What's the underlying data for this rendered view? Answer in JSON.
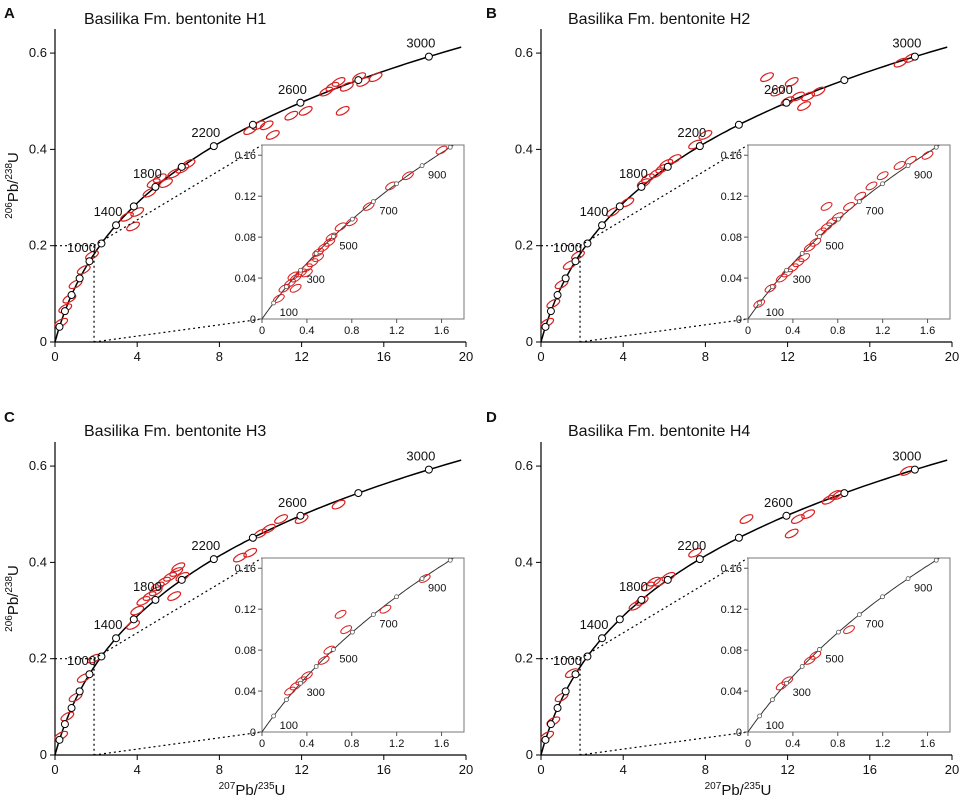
{
  "chart_data": [
    {
      "type": "scatter",
      "panel_label": "A",
      "title": "Basilika Fm. bentonite H1",
      "xlabel": "207Pb/235U",
      "ylabel": "206Pb/238U",
      "xlim": [
        0,
        20
      ],
      "ylim": [
        0,
        0.65
      ],
      "xticks": [
        "0",
        "4",
        "8",
        "12",
        "16",
        "20"
      ],
      "yticks": [
        "0",
        "0.2",
        "0.4",
        "0.6"
      ],
      "ages": [
        "1000",
        "1400",
        "1800",
        "2200",
        "2600",
        "3000"
      ],
      "inset": {
        "xlim": [
          0,
          1.8
        ],
        "ylim": [
          0,
          0.17
        ],
        "xticks": [
          "0",
          "0.4",
          "0.8",
          "1.2",
          "1.6"
        ],
        "yticks": [
          "0",
          "0.04",
          "0.08",
          "0.12",
          "0.16"
        ],
        "ages": [
          "100",
          "300",
          "500",
          "700",
          "900"
        ],
        "zoom_box": {
          "x": 1.9,
          "y": 0.2
        },
        "ellipses": [
          [
            0.15,
            0.02
          ],
          [
            0.25,
            0.035
          ],
          [
            0.3,
            0.04
          ],
          [
            0.35,
            0.045
          ],
          [
            0.4,
            0.05
          ],
          [
            0.45,
            0.055
          ],
          [
            0.5,
            0.06
          ],
          [
            0.55,
            0.07
          ],
          [
            0.6,
            0.075
          ],
          [
            0.3,
            0.03
          ],
          [
            0.2,
            0.03
          ],
          [
            0.4,
            0.045
          ],
          [
            0.28,
            0.042
          ],
          [
            0.5,
            0.065
          ],
          [
            0.62,
            0.08
          ],
          [
            0.7,
            0.09
          ],
          [
            0.8,
            0.095
          ],
          [
            0.95,
            0.11
          ],
          [
            1.15,
            0.13
          ],
          [
            1.3,
            0.14
          ],
          [
            1.6,
            0.165
          ]
        ]
      },
      "ellipses": [
        [
          0.3,
          0.04
        ],
        [
          0.5,
          0.07
        ],
        [
          0.7,
          0.09
        ],
        [
          1.0,
          0.12
        ],
        [
          1.4,
          0.15
        ],
        [
          1.8,
          0.18
        ],
        [
          3.5,
          0.26
        ],
        [
          4.0,
          0.27
        ],
        [
          4.6,
          0.31
        ],
        [
          4.8,
          0.33
        ],
        [
          5.1,
          0.34
        ],
        [
          5.4,
          0.33
        ],
        [
          5.8,
          0.35
        ],
        [
          6.2,
          0.36
        ],
        [
          6.5,
          0.37
        ],
        [
          3.8,
          0.24
        ],
        [
          9.5,
          0.44
        ],
        [
          9.9,
          0.45
        ],
        [
          10.3,
          0.45
        ],
        [
          10.6,
          0.43
        ],
        [
          11.5,
          0.47
        ],
        [
          13.2,
          0.52
        ],
        [
          13.5,
          0.53
        ],
        [
          13.8,
          0.54
        ],
        [
          14.2,
          0.53
        ],
        [
          14.8,
          0.55
        ],
        [
          15.0,
          0.54
        ],
        [
          15.6,
          0.55
        ],
        [
          14.0,
          0.48
        ],
        [
          12.2,
          0.48
        ]
      ]
    },
    {
      "type": "scatter",
      "panel_label": "B",
      "title": "Basilika Fm. bentonite H2",
      "xlabel": "207Pb/235U",
      "ylabel": "206Pb/238U",
      "xlim": [
        0,
        20
      ],
      "ylim": [
        0,
        0.65
      ],
      "xticks": [
        "0",
        "4",
        "8",
        "12",
        "16",
        "20"
      ],
      "yticks": [
        "0",
        "0.2",
        "0.4",
        "0.6"
      ],
      "ages": [
        "1000",
        "1400",
        "1800",
        "2200",
        "2600",
        "3000"
      ],
      "inset": {
        "xlim": [
          0,
          1.8
        ],
        "ylim": [
          0,
          0.17
        ],
        "xticks": [
          "0",
          "0.4",
          "0.8",
          "1.2",
          "1.6"
        ],
        "yticks": [
          "0",
          "0.04",
          "0.08",
          "0.12",
          "0.16"
        ],
        "ages": [
          "100",
          "300",
          "500",
          "700",
          "900"
        ],
        "zoom_box": {
          "x": 1.9,
          "y": 0.2
        },
        "ellipses": [
          [
            0.1,
            0.015
          ],
          [
            0.2,
            0.03
          ],
          [
            0.3,
            0.04
          ],
          [
            0.35,
            0.045
          ],
          [
            0.4,
            0.05
          ],
          [
            0.45,
            0.055
          ],
          [
            0.5,
            0.06
          ],
          [
            0.55,
            0.07
          ],
          [
            0.6,
            0.075
          ],
          [
            0.65,
            0.085
          ],
          [
            0.7,
            0.09
          ],
          [
            0.75,
            0.095
          ],
          [
            0.8,
            0.1
          ],
          [
            0.9,
            0.11
          ],
          [
            1.0,
            0.12
          ],
          [
            1.1,
            0.13
          ],
          [
            1.2,
            0.14
          ],
          [
            1.35,
            0.15
          ],
          [
            1.45,
            0.155
          ],
          [
            1.6,
            0.16
          ],
          [
            0.7,
            0.11
          ]
        ]
      },
      "ellipses": [
        [
          0.3,
          0.04
        ],
        [
          0.6,
          0.08
        ],
        [
          1.0,
          0.12
        ],
        [
          1.4,
          0.16
        ],
        [
          1.8,
          0.18
        ],
        [
          3.5,
          0.27
        ],
        [
          4.2,
          0.29
        ],
        [
          5.0,
          0.33
        ],
        [
          5.2,
          0.34
        ],
        [
          5.6,
          0.35
        ],
        [
          5.9,
          0.36
        ],
        [
          6.1,
          0.37
        ],
        [
          6.5,
          0.38
        ],
        [
          7.5,
          0.41
        ],
        [
          8.0,
          0.43
        ],
        [
          11.0,
          0.55
        ],
        [
          11.5,
          0.52
        ],
        [
          12.0,
          0.5
        ],
        [
          12.5,
          0.51
        ],
        [
          13.0,
          0.51
        ],
        [
          13.5,
          0.52
        ],
        [
          12.8,
          0.49
        ],
        [
          17.5,
          0.58
        ],
        [
          18.0,
          0.59
        ],
        [
          12.2,
          0.54
        ]
      ]
    },
    {
      "type": "scatter",
      "panel_label": "C",
      "title": "Basilika Fm. bentonite H3",
      "xlabel": "207Pb/235U",
      "ylabel": "206Pb/238U",
      "xlim": [
        0,
        20
      ],
      "ylim": [
        0,
        0.65
      ],
      "xticks": [
        "0",
        "4",
        "8",
        "12",
        "16",
        "20"
      ],
      "yticks": [
        "0",
        "0.2",
        "0.4",
        "0.6"
      ],
      "ages": [
        "1000",
        "1400",
        "1800",
        "2200",
        "2600",
        "3000"
      ],
      "inset": {
        "xlim": [
          0,
          1.8
        ],
        "ylim": [
          0,
          0.17
        ],
        "xticks": [
          "0",
          "0.4",
          "0.8",
          "1.2",
          "1.6"
        ],
        "yticks": [
          "0",
          "0.04",
          "0.08",
          "0.12",
          "0.16"
        ],
        "ages": [
          "100",
          "300",
          "500",
          "700",
          "900"
        ],
        "zoom_box": {
          "x": 1.9,
          "y": 0.2
        },
        "ellipses": [
          [
            0.25,
            0.04
          ],
          [
            0.3,
            0.045
          ],
          [
            0.35,
            0.05
          ],
          [
            0.4,
            0.055
          ],
          [
            0.55,
            0.07
          ],
          [
            0.6,
            0.08
          ],
          [
            0.75,
            0.1
          ],
          [
            1.1,
            0.12
          ],
          [
            1.45,
            0.15
          ],
          [
            0.7,
            0.115
          ]
        ]
      },
      "ellipses": [
        [
          0.3,
          0.04
        ],
        [
          0.6,
          0.08
        ],
        [
          1.0,
          0.12
        ],
        [
          1.4,
          0.16
        ],
        [
          1.9,
          0.2
        ],
        [
          3.8,
          0.27
        ],
        [
          4.0,
          0.3
        ],
        [
          4.3,
          0.32
        ],
        [
          4.6,
          0.33
        ],
        [
          4.9,
          0.34
        ],
        [
          5.0,
          0.35
        ],
        [
          5.3,
          0.36
        ],
        [
          5.6,
          0.37
        ],
        [
          5.9,
          0.38
        ],
        [
          6.0,
          0.39
        ],
        [
          6.2,
          0.37
        ],
        [
          5.8,
          0.33
        ],
        [
          9.0,
          0.41
        ],
        [
          10.0,
          0.46
        ],
        [
          10.4,
          0.47
        ],
        [
          11.0,
          0.49
        ],
        [
          12.0,
          0.49
        ],
        [
          13.8,
          0.52
        ],
        [
          9.5,
          0.42
        ]
      ]
    },
    {
      "type": "scatter",
      "panel_label": "D",
      "title": "Basilika Fm. bentonite H4",
      "xlabel": "207Pb/235U",
      "ylabel": "206Pb/238U",
      "xlim": [
        0,
        20
      ],
      "ylim": [
        0,
        0.65
      ],
      "xticks": [
        "0",
        "4",
        "8",
        "12",
        "16",
        "20"
      ],
      "yticks": [
        "0",
        "0.2",
        "0.4",
        "0.6"
      ],
      "ages": [
        "1000",
        "1400",
        "1800",
        "2200",
        "2600",
        "3000"
      ],
      "inset": {
        "xlim": [
          0,
          1.8
        ],
        "ylim": [
          0,
          0.17
        ],
        "xticks": [
          "0",
          "0.4",
          "0.8",
          "1.2",
          "1.6"
        ],
        "yticks": [
          "0",
          "0.04",
          "0.08",
          "0.12",
          "0.16"
        ],
        "ages": [
          "100",
          "300",
          "500",
          "700",
          "900"
        ],
        "zoom_box": {
          "x": 1.9,
          "y": 0.2
        },
        "ellipses": [
          [
            0.3,
            0.045
          ],
          [
            0.35,
            0.05
          ],
          [
            0.55,
            0.07
          ],
          [
            0.6,
            0.075
          ],
          [
            0.9,
            0.1
          ]
        ]
      },
      "ellipses": [
        [
          0.3,
          0.04
        ],
        [
          0.6,
          0.07
        ],
        [
          1.0,
          0.12
        ],
        [
          1.5,
          0.17
        ],
        [
          4.6,
          0.31
        ],
        [
          4.9,
          0.32
        ],
        [
          5.2,
          0.35
        ],
        [
          5.5,
          0.36
        ],
        [
          5.8,
          0.36
        ],
        [
          6.2,
          0.37
        ],
        [
          7.5,
          0.42
        ],
        [
          10.0,
          0.49
        ],
        [
          12.2,
          0.46
        ],
        [
          12.5,
          0.49
        ],
        [
          13.0,
          0.5
        ],
        [
          14.0,
          0.53
        ],
        [
          14.5,
          0.54
        ],
        [
          14.3,
          0.54
        ],
        [
          17.8,
          0.59
        ]
      ]
    }
  ]
}
